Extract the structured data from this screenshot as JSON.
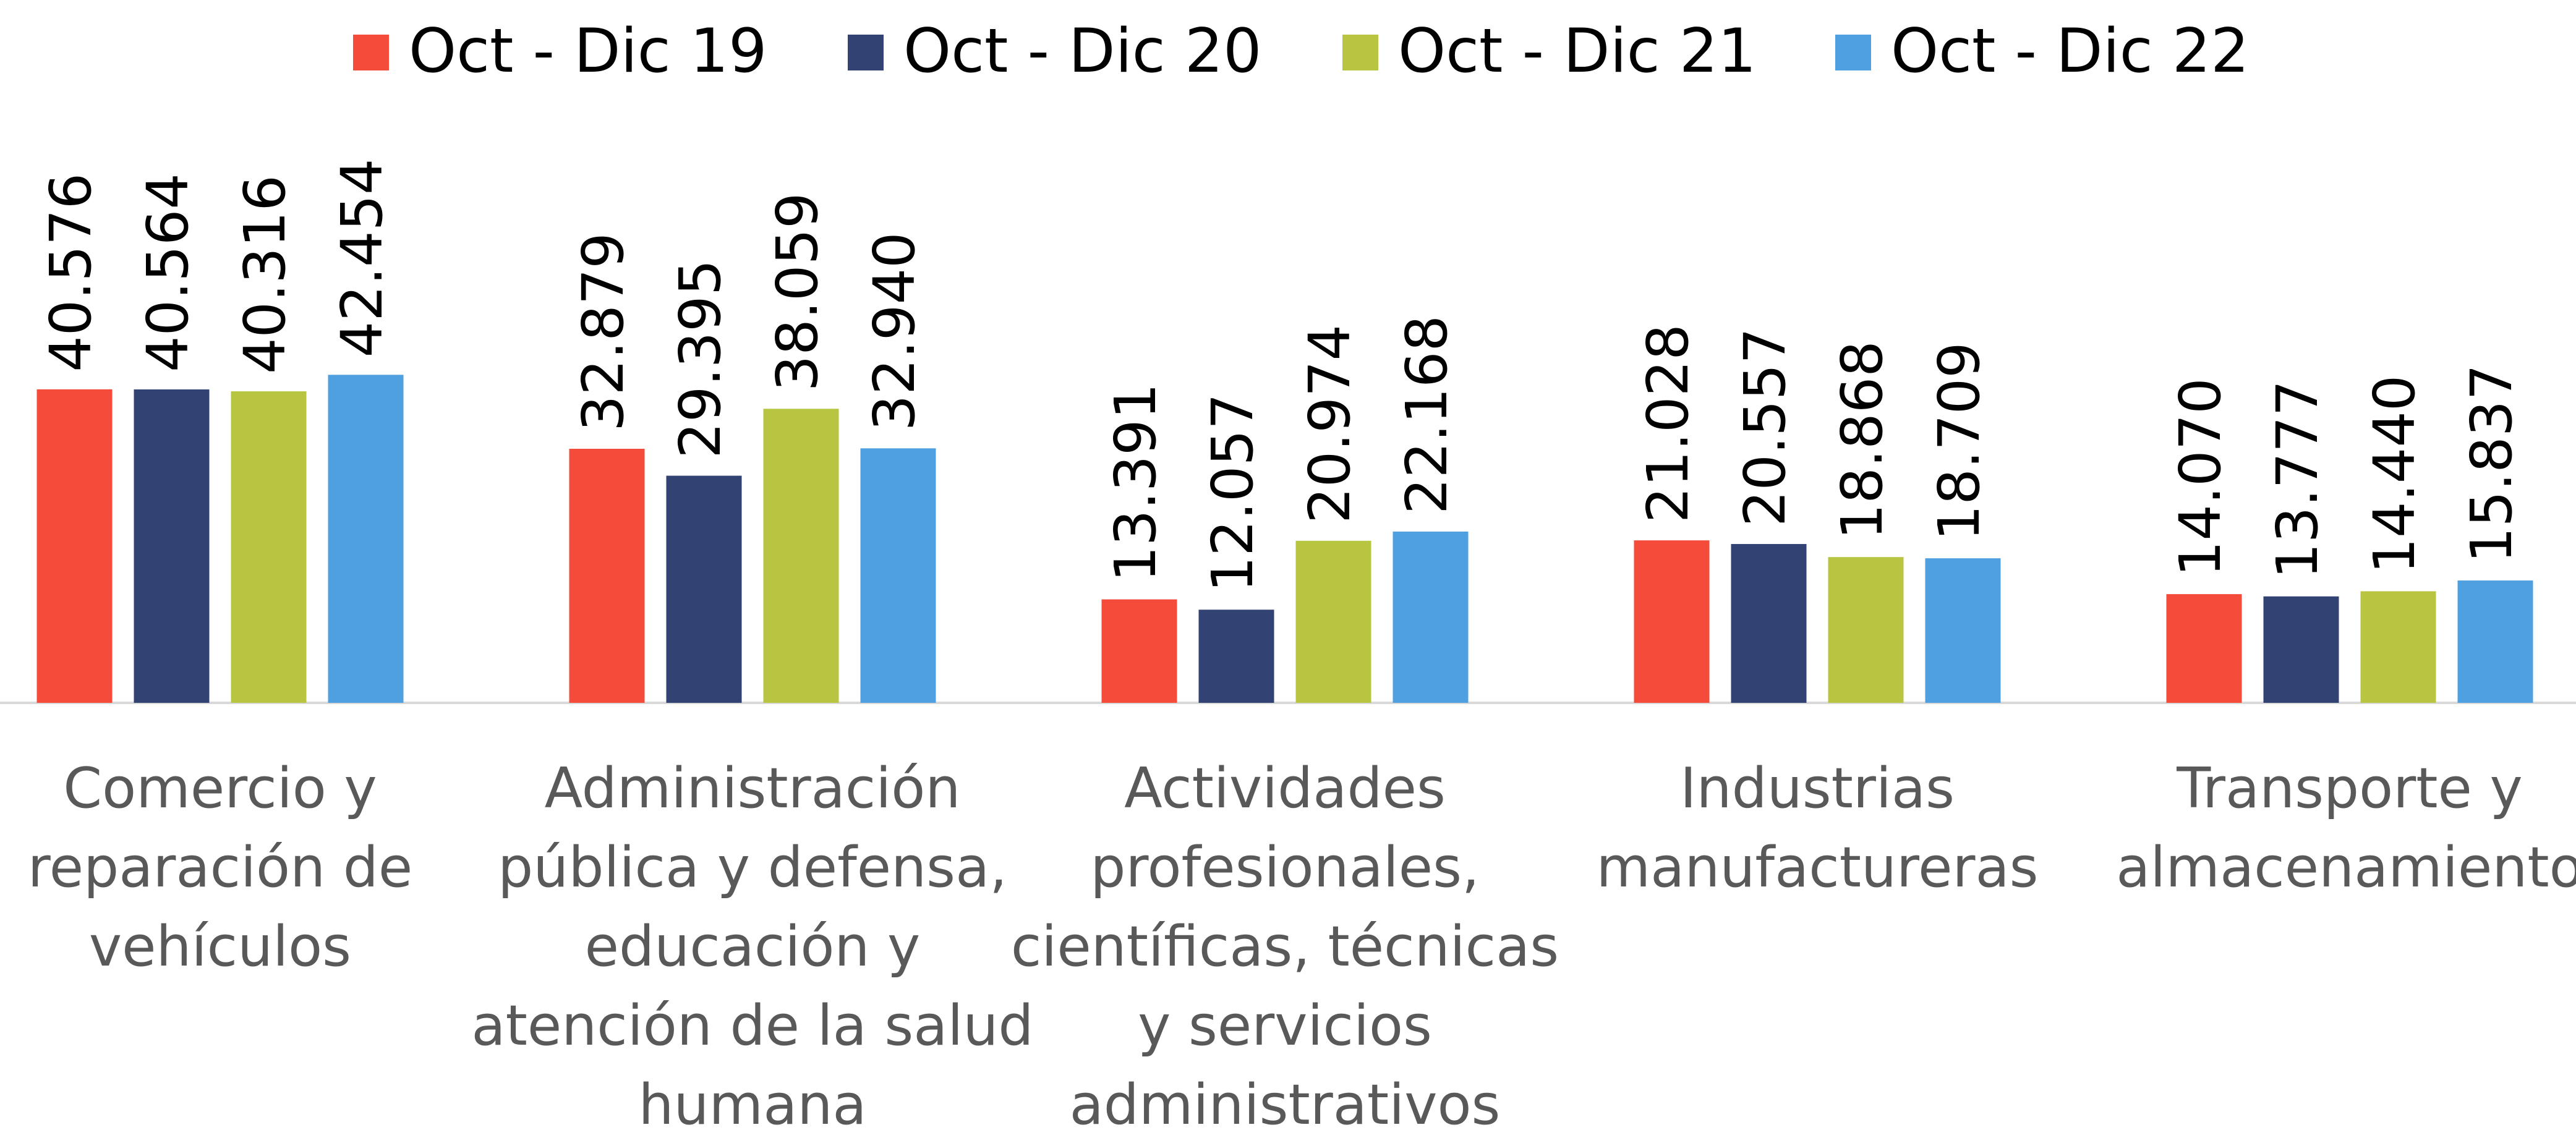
{
  "chart_data": {
    "type": "bar",
    "categories": [
      "Comercio y\nreparación de\nvehículos",
      "Administración\npública y defensa,\neducación y\natención de la salud\nhumana",
      "Actividades\nprofesionales,\ncientíficas, técnicas\ny servicios\nadministrativos",
      "Industrias\nmanufactureras",
      "Transporte y\nalmacenamiento"
    ],
    "series": [
      {
        "name": "Oct - Dic 19",
        "color": "#f44b3a",
        "values": [
          40576,
          32879,
          13391,
          21028,
          14070
        ],
        "value_labels": [
          "40.576",
          "32.879",
          "13.391",
          "21.028",
          "14.070"
        ]
      },
      {
        "name": "Oct - Dic 20",
        "color": "#324373",
        "values": [
          40564,
          29395,
          12057,
          20557,
          13777
        ],
        "value_labels": [
          "40.564",
          "29.395",
          "12.057",
          "20.557",
          "13.777"
        ]
      },
      {
        "name": "Oct - Dic 21",
        "color": "#b8c540",
        "values": [
          40316,
          38059,
          20974,
          18868,
          14440
        ],
        "value_labels": [
          "40.316",
          "38.059",
          "20.974",
          "18.868",
          "14.440"
        ]
      },
      {
        "name": "Oct - Dic 22",
        "color": "#4fa0e0",
        "values": [
          42454,
          32940,
          22168,
          18709,
          15837
        ],
        "value_labels": [
          "42.454",
          "32.940",
          "22.168",
          "18.709",
          "15.837"
        ]
      }
    ],
    "legend": "top"
  }
}
